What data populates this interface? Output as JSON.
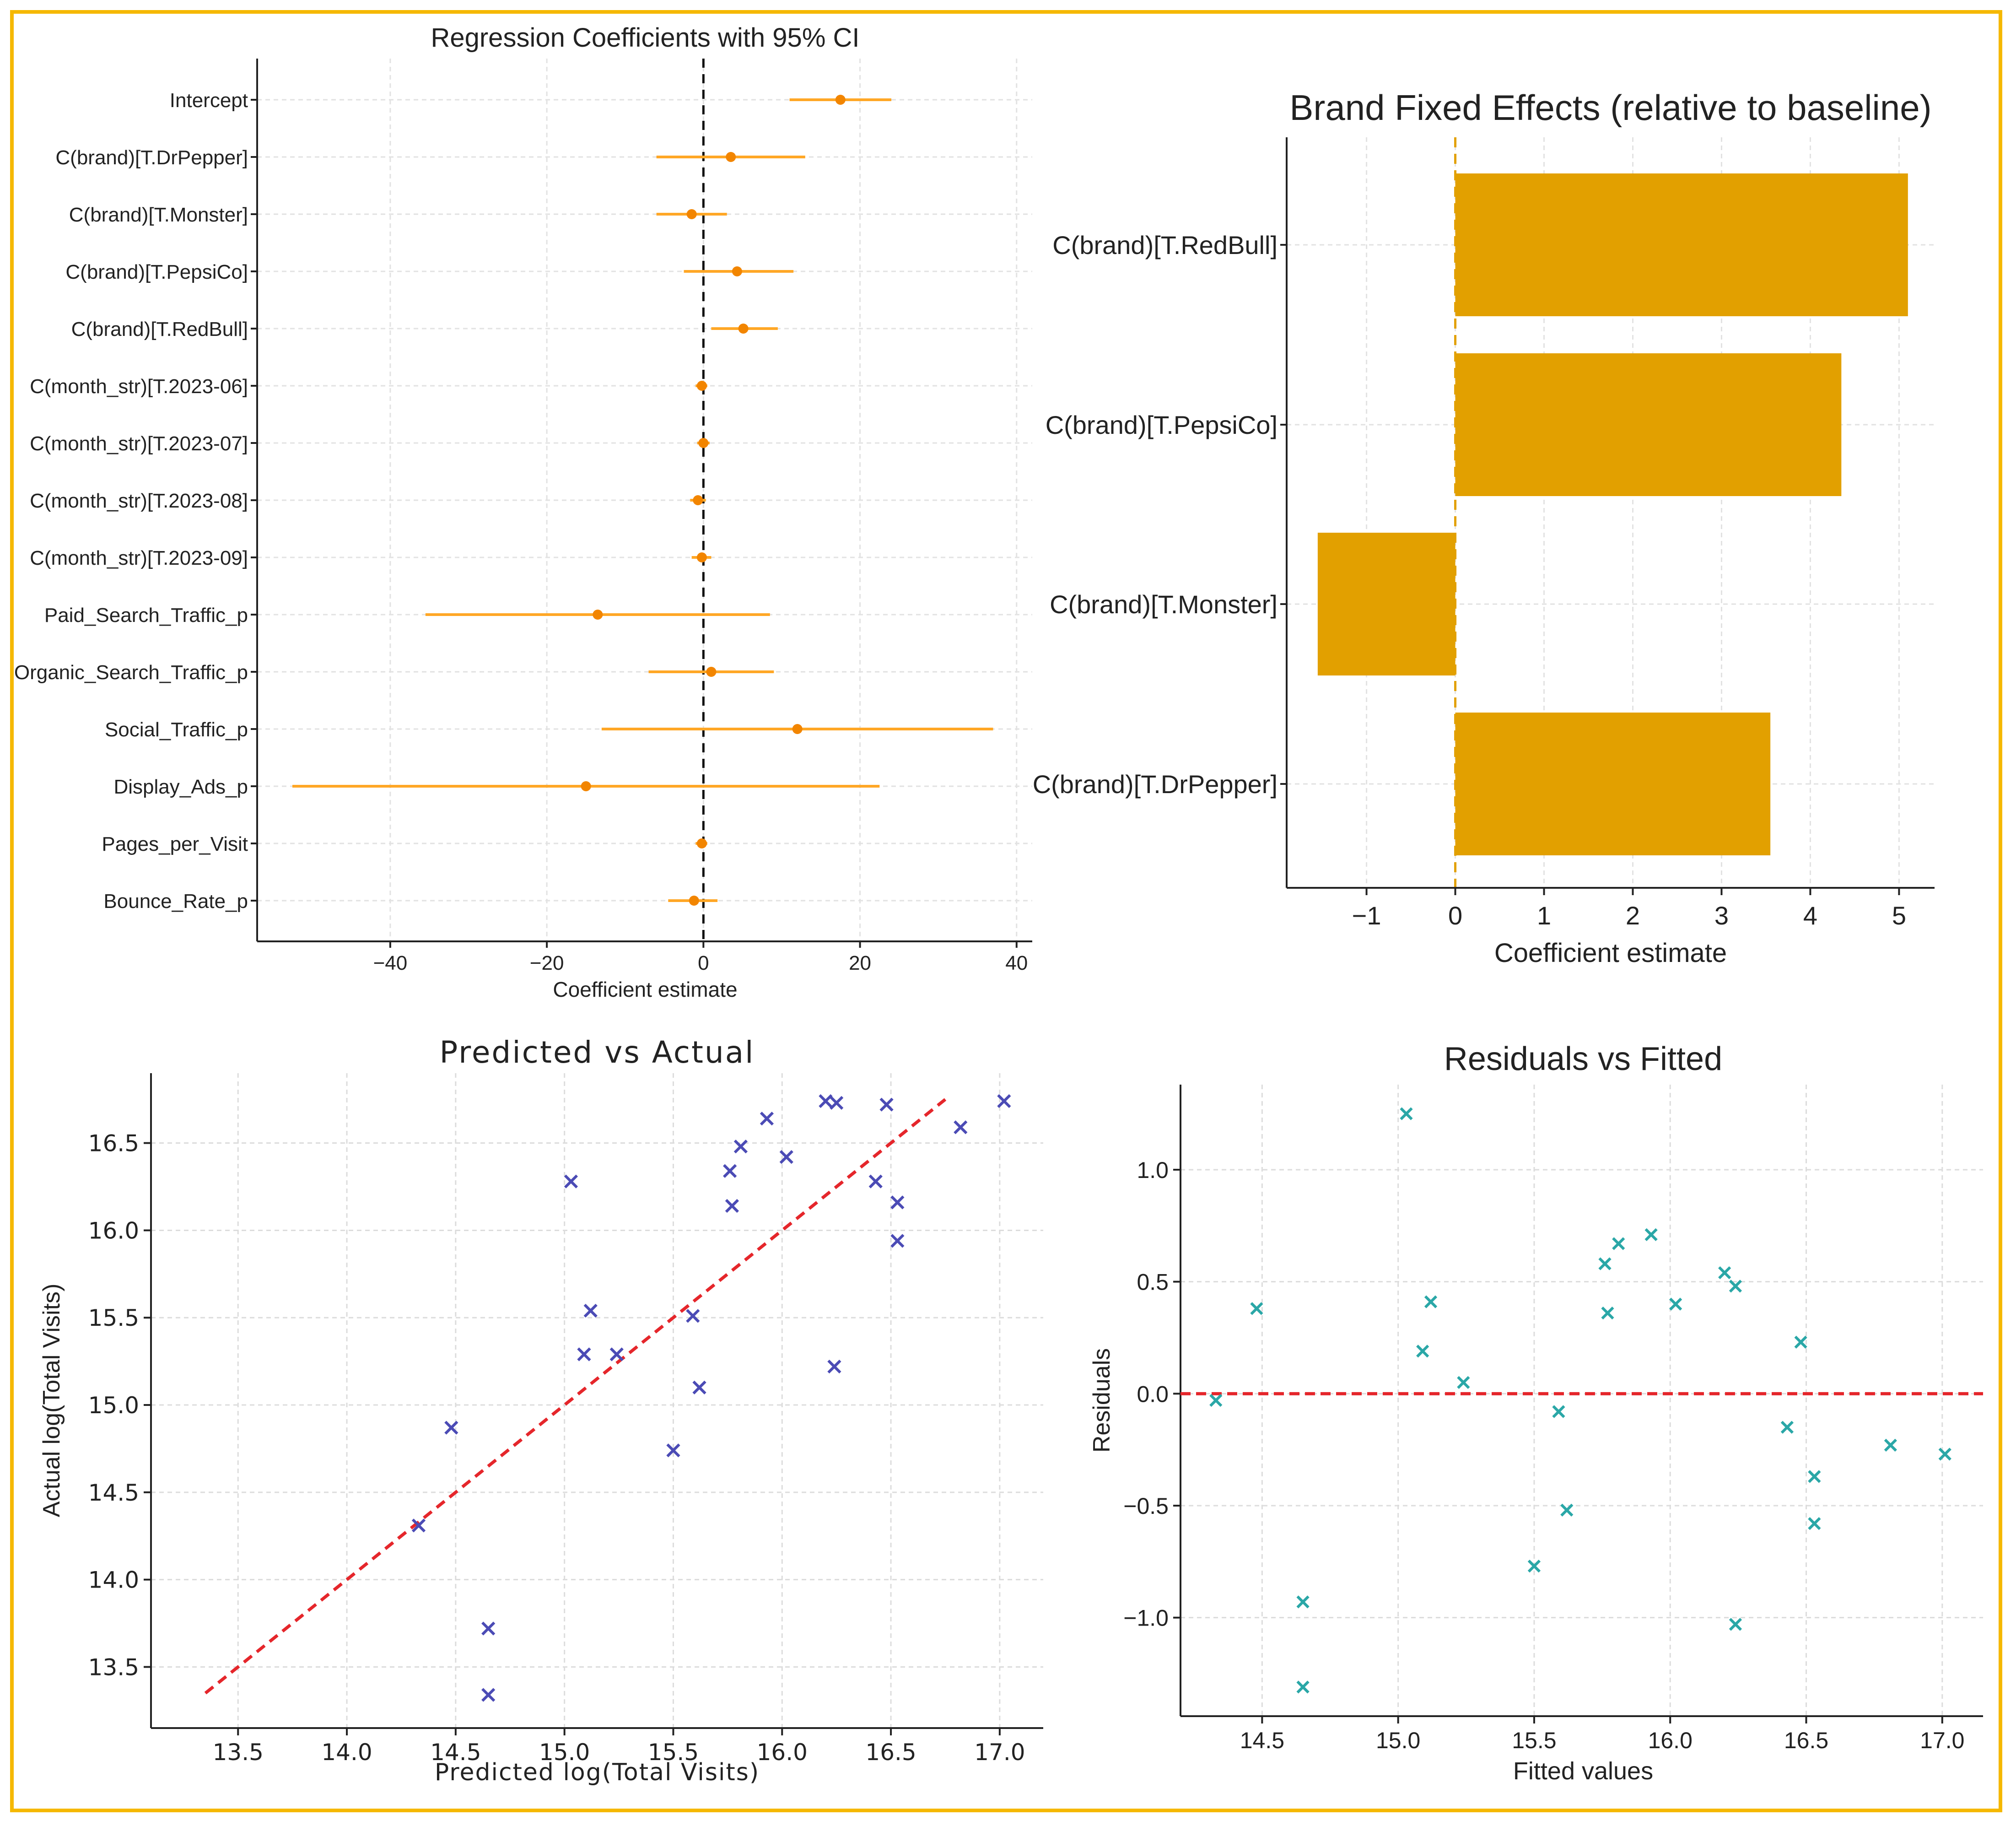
{
  "colors": {
    "frame": "#f5b800",
    "ci_line": "#ffa726",
    "ci_point": "#f28500",
    "bar": "#e2a000",
    "scatter_pred": "#4b4bb5",
    "scatter_resid": "#2aa7a7",
    "ref_line": "#e5262b"
  },
  "chart_data": [
    {
      "type": "scatter",
      "title": "Regression Coefficients with 95% CI",
      "xlabel": "Coefficient estimate",
      "ylabel": "",
      "xlim": [
        -57,
        42
      ],
      "xticks": [
        -40,
        -20,
        0,
        20,
        40
      ],
      "xtick_labels": [
        "−40",
        "−20",
        "0",
        "20",
        "40"
      ],
      "reference_line": 0,
      "terms": [
        {
          "label": "Intercept",
          "estimate": 17.5,
          "lower": 11,
          "upper": 24
        },
        {
          "label": "C(brand)[T.DrPepper]",
          "estimate": 3.5,
          "lower": -6,
          "upper": 13
        },
        {
          "label": "C(brand)[T.Monster]",
          "estimate": -1.5,
          "lower": -6,
          "upper": 3
        },
        {
          "label": "C(brand)[T.PepsiCo]",
          "estimate": 4.3,
          "lower": -2.5,
          "upper": 11.5
        },
        {
          "label": "C(brand)[T.RedBull]",
          "estimate": 5.1,
          "lower": 1,
          "upper": 9.5
        },
        {
          "label": "C(month_str)[T.2023-06]",
          "estimate": -0.2,
          "lower": -1,
          "upper": 0.5
        },
        {
          "label": "C(month_str)[T.2023-07]",
          "estimate": 0,
          "lower": -0.8,
          "upper": 0.8
        },
        {
          "label": "C(month_str)[T.2023-08]",
          "estimate": -0.7,
          "lower": -1.7,
          "upper": 0.3
        },
        {
          "label": "C(month_str)[T.2023-09]",
          "estimate": -0.2,
          "lower": -1.5,
          "upper": 1
        },
        {
          "label": "Paid_Search_Traffic_p",
          "estimate": -13.5,
          "lower": -35.5,
          "upper": 8.5
        },
        {
          "label": "Organic_Search_Traffic_p",
          "estimate": 1,
          "lower": -7,
          "upper": 9
        },
        {
          "label": "Social_Traffic_p",
          "estimate": 12,
          "lower": -13,
          "upper": 37
        },
        {
          "label": "Display_Ads_p",
          "estimate": -15,
          "lower": -52.5,
          "upper": 22.5
        },
        {
          "label": "Pages_per_Visit",
          "estimate": -0.2,
          "lower": -1,
          "upper": 0.5
        },
        {
          "label": "Bounce_Rate_p",
          "estimate": -1.2,
          "lower": -4.5,
          "upper": 1.8
        }
      ]
    },
    {
      "type": "bar",
      "orientation": "horizontal",
      "title": "Brand Fixed Effects (relative to baseline)",
      "xlabel": "Coefficient estimate",
      "ylabel": "",
      "xlim": [
        -1.9,
        5.4
      ],
      "xticks": [
        -1,
        0,
        1,
        2,
        3,
        4,
        5
      ],
      "xtick_labels": [
        "−1",
        "0",
        "1",
        "2",
        "3",
        "4",
        "5"
      ],
      "reference_line": 0,
      "categories": [
        "C(brand)[T.RedBull]",
        "C(brand)[T.PepsiCo]",
        "C(brand)[T.Monster]",
        "C(brand)[T.DrPepper]"
      ],
      "values": [
        5.1,
        4.35,
        -1.55,
        3.55
      ]
    },
    {
      "type": "scatter",
      "title": "Predicted vs Actual",
      "xlabel": "Predicted log(Total Visits)",
      "ylabel": "Actual log(Total Visits)",
      "xlim": [
        13.1,
        17.2
      ],
      "ylim": [
        13.15,
        16.9
      ],
      "xticks": [
        13.5,
        14.0,
        14.5,
        15.0,
        15.5,
        16.0,
        16.5,
        17.0
      ],
      "xtick_labels": [
        "13.5",
        "14.0",
        "14.5",
        "15.0",
        "15.5",
        "16.0",
        "16.5",
        "17.0"
      ],
      "yticks": [
        13.5,
        14.0,
        14.5,
        15.0,
        15.5,
        16.0,
        16.5
      ],
      "ytick_labels": [
        "13.5",
        "14.0",
        "14.5",
        "15.0",
        "15.5",
        "16.0",
        "16.5"
      ],
      "reference_line": {
        "from": [
          13.35,
          13.35
        ],
        "to": [
          16.75,
          16.75
        ]
      },
      "x": [
        14.33,
        14.48,
        14.65,
        14.65,
        15.03,
        15.09,
        15.12,
        15.24,
        15.5,
        15.59,
        15.62,
        15.76,
        15.77,
        15.81,
        15.93,
        16.02,
        16.2,
        16.25,
        16.24,
        16.43,
        16.48,
        16.53,
        16.53,
        16.82,
        17.02
      ],
      "y": [
        14.31,
        14.87,
        13.72,
        13.34,
        16.28,
        15.29,
        15.54,
        15.29,
        14.74,
        15.51,
        15.1,
        16.34,
        16.14,
        16.48,
        16.64,
        16.42,
        16.74,
        16.73,
        15.22,
        16.28,
        16.72,
        16.16,
        15.94,
        16.59,
        16.74
      ]
    },
    {
      "type": "scatter",
      "title": "Residuals vs Fitted",
      "xlabel": "Fitted values",
      "ylabel": "Residuals",
      "xlim": [
        14.2,
        17.15
      ],
      "ylim": [
        -1.44,
        1.38
      ],
      "xticks": [
        14.5,
        15.0,
        15.5,
        16.0,
        16.5,
        17.0
      ],
      "xtick_labels": [
        "14.5",
        "15.0",
        "15.5",
        "16.0",
        "16.5",
        "17.0"
      ],
      "yticks": [
        -1.0,
        -0.5,
        0.0,
        0.5,
        1.0
      ],
      "ytick_labels": [
        "−1.0",
        "−0.5",
        "0.0",
        "0.5",
        "1.0"
      ],
      "reference_line": 0,
      "x": [
        14.33,
        14.48,
        14.65,
        14.65,
        15.03,
        15.09,
        15.12,
        15.24,
        15.5,
        15.59,
        15.62,
        15.76,
        15.77,
        15.81,
        15.93,
        16.02,
        16.2,
        16.24,
        16.24,
        16.43,
        16.48,
        16.53,
        16.53,
        16.81,
        17.01
      ],
      "y": [
        -0.03,
        0.38,
        -0.93,
        -1.31,
        1.25,
        0.19,
        0.41,
        0.05,
        -0.77,
        -0.08,
        -0.52,
        0.58,
        0.36,
        0.67,
        0.71,
        0.4,
        0.54,
        0.48,
        -1.03,
        -0.15,
        0.23,
        -0.37,
        -0.58,
        -0.23,
        -0.27
      ]
    }
  ]
}
